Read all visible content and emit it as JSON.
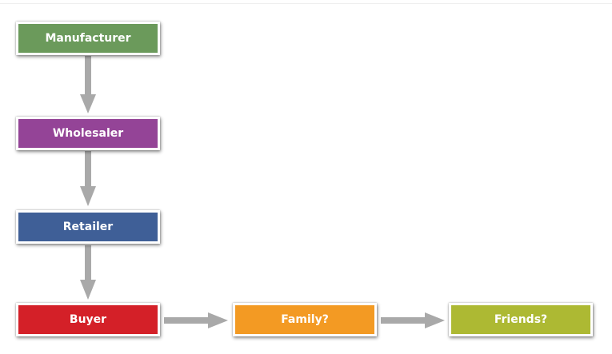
{
  "nodes": [
    {
      "label": "Manufacturer",
      "color": "#6b9a5b"
    },
    {
      "label": "Wholesaler",
      "color": "#944497"
    },
    {
      "label": "Retailer",
      "color": "#3f5f97"
    },
    {
      "label": "Buyer",
      "color": "#d42028"
    },
    {
      "label": "Family?",
      "color": "#f39a23"
    },
    {
      "label": "Friends?",
      "color": "#adb933"
    }
  ],
  "edges": [
    {
      "from": "Manufacturer",
      "to": "Wholesaler"
    },
    {
      "from": "Wholesaler",
      "to": "Retailer"
    },
    {
      "from": "Retailer",
      "to": "Buyer"
    },
    {
      "from": "Buyer",
      "to": "Family?"
    },
    {
      "from": "Family?",
      "to": "Friends?"
    }
  ],
  "arrow_color": "#a8a8a8"
}
